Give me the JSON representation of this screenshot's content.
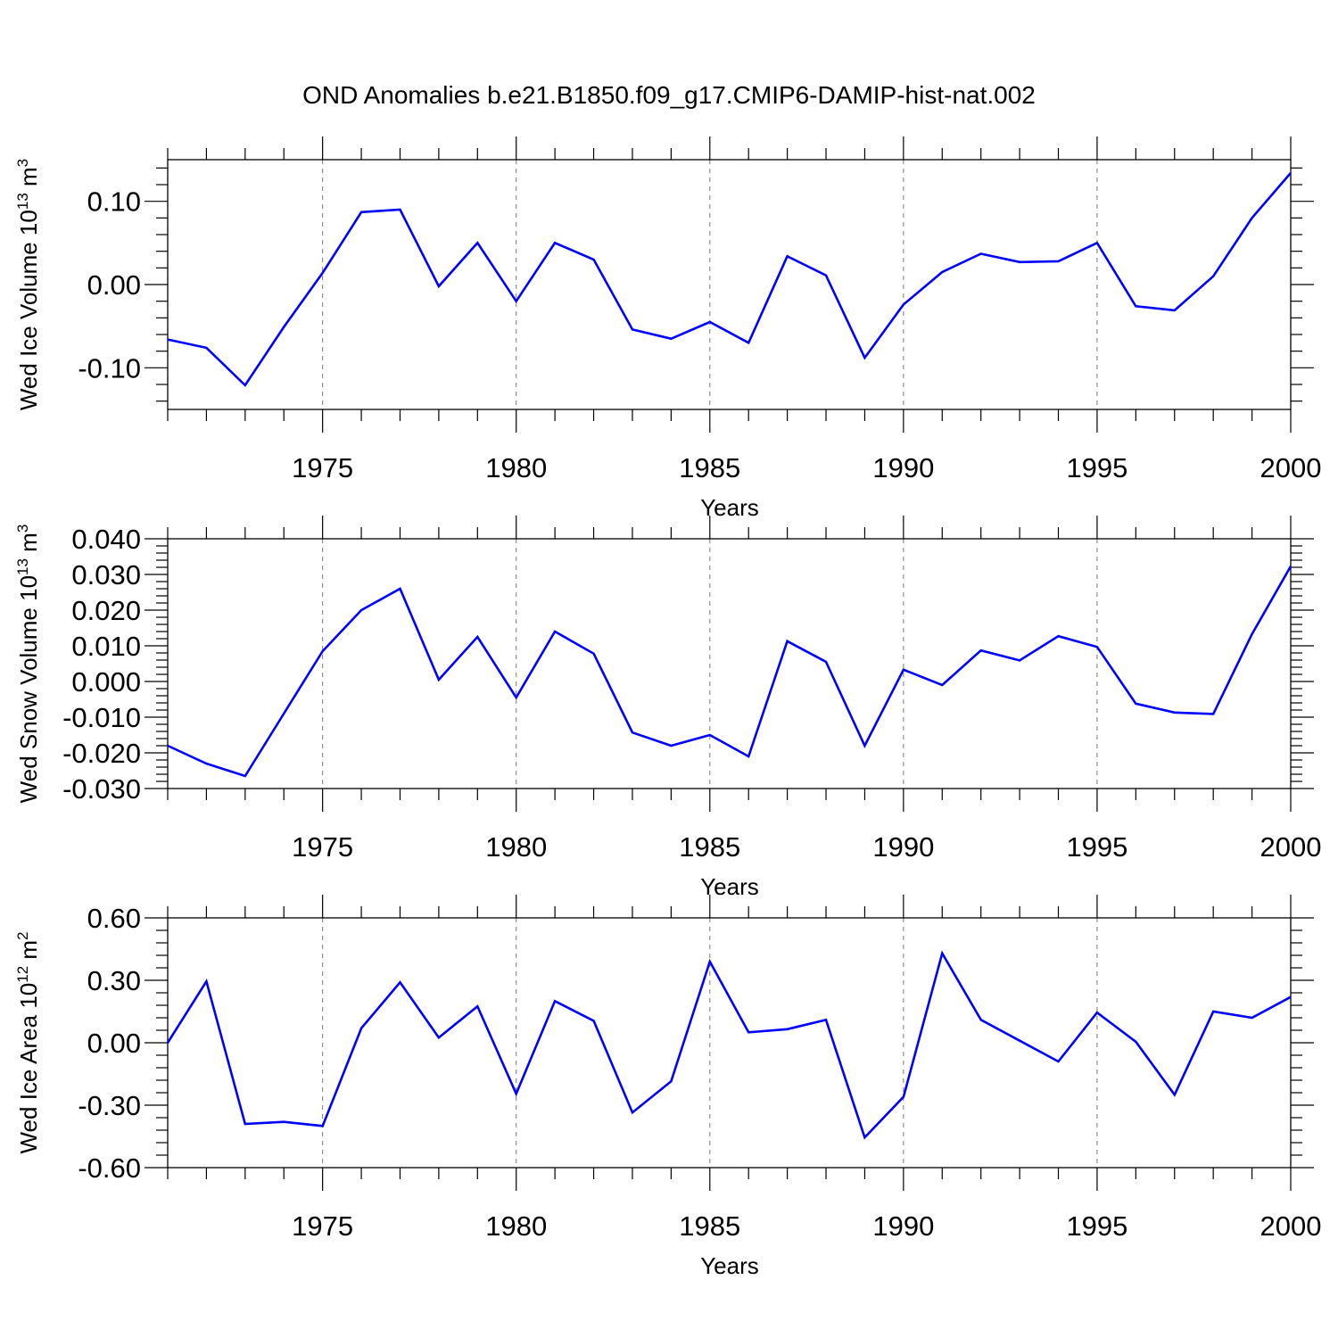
{
  "title": "OND Anomalies b.e21.B1850.f09_g17.CMIP6-DAMIP-hist-nat.002",
  "line_color": "#0000ff",
  "chart_data": [
    {
      "type": "line",
      "name": "ice-volume",
      "ylabel": "Wed Ice Volume 10",
      "ylabel_exp": "13",
      "ylabel_unit": " m",
      "ylabel_unit_exp": "3",
      "xlabel": "Years",
      "xlim": [
        1971,
        2000
      ],
      "ylim": [
        -0.15,
        0.15
      ],
      "yticks": [
        -0.1,
        0.0,
        0.1
      ],
      "ytick_labels": [
        "-0.10",
        "0.00",
        "0.10"
      ],
      "xticks": [
        1975,
        1980,
        1985,
        1990,
        1995,
        2000
      ],
      "xtick_labels": [
        "1975",
        "1980",
        "1985",
        "1990",
        "1995",
        "2000"
      ],
      "x": [
        1971,
        1972,
        1973,
        1974,
        1975,
        1976,
        1977,
        1978,
        1979,
        1980,
        1981,
        1982,
        1983,
        1984,
        1985,
        1986,
        1987,
        1988,
        1989,
        1990,
        1991,
        1992,
        1993,
        1994,
        1995,
        1996,
        1997,
        1998,
        1999,
        2000
      ],
      "values": [
        -0.066,
        -0.076,
        -0.121,
        -0.051,
        0.014,
        0.087,
        0.09,
        -0.002,
        0.05,
        -0.02,
        0.05,
        0.03,
        -0.054,
        -0.065,
        -0.045,
        -0.07,
        0.034,
        0.011,
        -0.088,
        -0.024,
        0.015,
        0.037,
        0.027,
        0.028,
        0.05,
        -0.026,
        -0.031,
        0.01,
        0.08,
        0.134
      ]
    },
    {
      "type": "line",
      "name": "snow-volume",
      "ylabel": "Wed Snow Volume 10",
      "ylabel_exp": "13",
      "ylabel_unit": " m",
      "ylabel_unit_exp": "3",
      "xlabel": "Years",
      "xlim": [
        1971,
        2000
      ],
      "ylim": [
        -0.03,
        0.04
      ],
      "yticks": [
        -0.03,
        -0.02,
        -0.01,
        0.0,
        0.01,
        0.02,
        0.03,
        0.04
      ],
      "ytick_labels": [
        "-0.030",
        "-0.020",
        "-0.010",
        "0.000",
        "0.010",
        "0.020",
        "0.030",
        "0.040"
      ],
      "xticks": [
        1975,
        1980,
        1985,
        1990,
        1995,
        2000
      ],
      "xtick_labels": [
        "1975",
        "1980",
        "1985",
        "1990",
        "1995",
        "2000"
      ],
      "x": [
        1971,
        1972,
        1973,
        1974,
        1975,
        1976,
        1977,
        1978,
        1979,
        1980,
        1981,
        1982,
        1983,
        1984,
        1985,
        1986,
        1987,
        1988,
        1989,
        1990,
        1991,
        1992,
        1993,
        1994,
        1995,
        1996,
        1997,
        1998,
        1999,
        2000
      ],
      "values": [
        -0.018,
        -0.023,
        -0.0265,
        -0.009,
        0.0085,
        0.02,
        0.026,
        0.0005,
        0.0125,
        -0.0045,
        0.014,
        0.0078,
        -0.0143,
        -0.018,
        -0.015,
        -0.021,
        0.0113,
        0.0055,
        -0.018,
        0.0033,
        -0.001,
        0.0087,
        0.0059,
        0.0127,
        0.0097,
        -0.0062,
        -0.0087,
        -0.0091,
        0.0133,
        0.0323
      ]
    },
    {
      "type": "line",
      "name": "ice-area",
      "ylabel": "Wed Ice Area 10",
      "ylabel_exp": "12",
      "ylabel_unit": " m",
      "ylabel_unit_exp": "2",
      "xlabel": "Years",
      "xlim": [
        1971,
        2000
      ],
      "ylim": [
        -0.6,
        0.6
      ],
      "yticks": [
        -0.6,
        -0.3,
        0.0,
        0.3,
        0.6
      ],
      "ytick_labels": [
        "-0.60",
        "-0.30",
        "0.00",
        "0.30",
        "0.60"
      ],
      "xticks": [
        1975,
        1980,
        1985,
        1990,
        1995,
        2000
      ],
      "xtick_labels": [
        "1975",
        "1980",
        "1985",
        "1990",
        "1995",
        "2000"
      ],
      "x": [
        1971,
        1972,
        1973,
        1974,
        1975,
        1976,
        1977,
        1978,
        1979,
        1980,
        1981,
        1982,
        1983,
        1984,
        1985,
        1986,
        1987,
        1988,
        1989,
        1990,
        1991,
        1992,
        1993,
        1994,
        1995,
        1996,
        1997,
        1998,
        1999,
        2000
      ],
      "values": [
        0.0,
        0.295,
        -0.39,
        -0.38,
        -0.4,
        0.07,
        0.29,
        0.025,
        0.175,
        -0.245,
        0.2,
        0.105,
        -0.335,
        -0.185,
        0.39,
        0.05,
        0.065,
        0.11,
        -0.455,
        -0.26,
        0.43,
        0.11,
        0.01,
        -0.09,
        0.145,
        0.005,
        -0.25,
        0.15,
        0.12,
        0.22
      ]
    }
  ]
}
